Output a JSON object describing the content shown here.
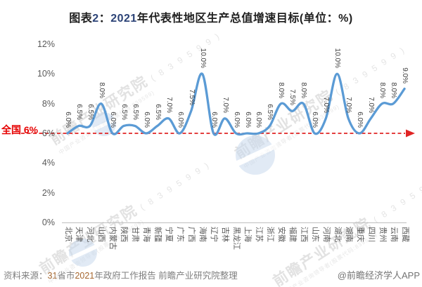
{
  "title": {
    "text": "图表2：2021年代表性地区生产总值增速目标(单位：%)",
    "parts": [
      {
        "t": "图表",
        "k": "text"
      },
      {
        "t": "2",
        "k": "num"
      },
      {
        "t": "：",
        "k": "text"
      },
      {
        "t": "2021",
        "k": "num"
      },
      {
        "t": "年代表性地区生产总值增速目标(单位：%)",
        "k": "text"
      }
    ]
  },
  "chart_data": {
    "type": "line",
    "title": "图表2：2021年代表性地区生产总值增速目标(单位：%)",
    "unit": "%",
    "categories": [
      "北京",
      "天津",
      "河北",
      "山西",
      "内蒙古",
      "陕西",
      "甘肃",
      "青海",
      "新疆",
      "宁夏",
      "广东",
      "广西",
      "海南",
      "辽宁",
      "吉林",
      "黑龙江",
      "上海",
      "江苏",
      "浙江",
      "安徽",
      "福建",
      "江西",
      "山东",
      "河南",
      "湖北",
      "湖南",
      "重庆",
      "四川",
      "贵州",
      "云南",
      "西藏"
    ],
    "values": [
      6.0,
      6.5,
      6.5,
      8.0,
      6.0,
      6.5,
      6.5,
      6.0,
      6.5,
      7.0,
      6.0,
      7.5,
      10.0,
      6.0,
      7.0,
      6.0,
      6.0,
      6.0,
      6.5,
      8.0,
      7.5,
      8.0,
      6.0,
      7.0,
      10.0,
      7.0,
      6.0,
      7.0,
      8.0,
      8.0,
      9.0
    ],
    "ylim": [
      0,
      12
    ],
    "yticks": [
      12,
      10,
      8,
      6,
      4,
      2,
      0
    ],
    "ytick_suffix": "%",
    "grid": false,
    "legend": "none",
    "line_color": "#5B9BD5",
    "label_color": "#3f3f3f",
    "reference_line": {
      "value": 6,
      "label": "全国 6%",
      "color": "#e02424"
    }
  },
  "footer": {
    "source_parts": [
      {
        "t": "资料来源：",
        "k": "text"
      },
      {
        "t": "31",
        "k": "num"
      },
      {
        "t": "省市",
        "k": "text"
      },
      {
        "t": "2021",
        "k": "num"
      },
      {
        "t": "年政府工作报告 前瞻产业研究院整理",
        "k": "text"
      }
    ],
    "credit": "@前瞻经济学人APP"
  },
  "watermark": {
    "brand": "前瞻产业研究院",
    "code": "( 8 3 9 5 9 9 )",
    "subtext": "中国产业咨询领导者(股票代码:839599)",
    "text_color": "#d9d9d9",
    "logo_color": "#c9daee"
  }
}
